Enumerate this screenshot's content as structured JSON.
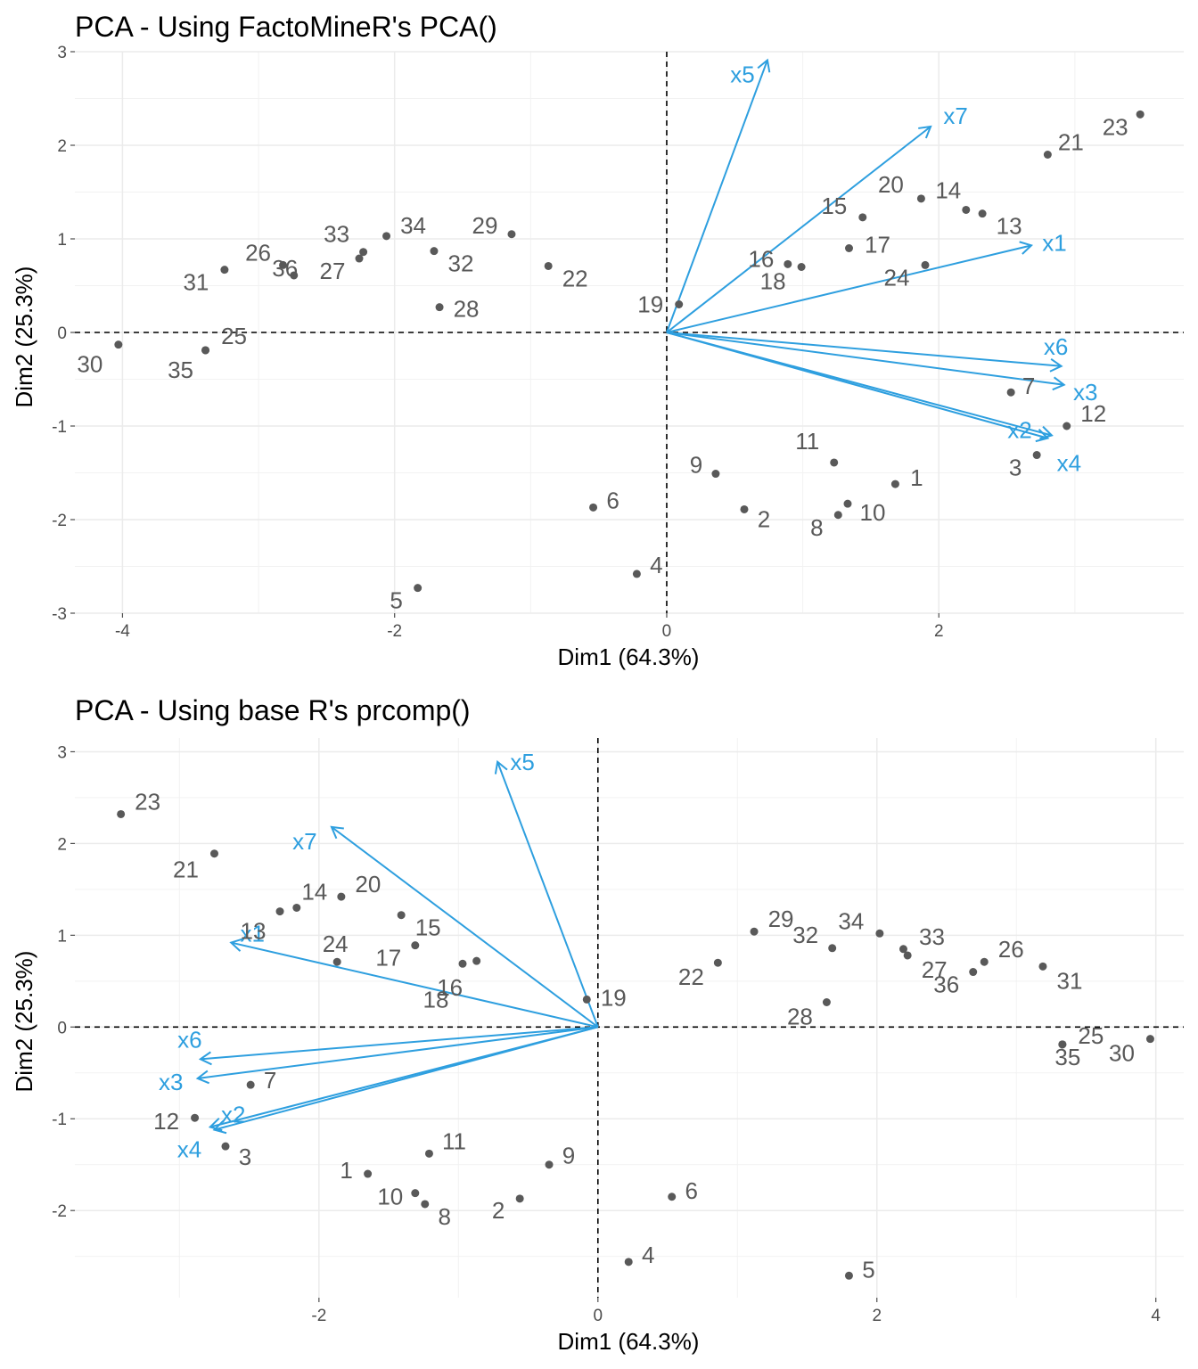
{
  "chart_data": [
    {
      "type": "scatter",
      "title": "PCA - Using FactoMineR's PCA()",
      "xlabel": "Dim1 (64.3%)",
      "ylabel": "Dim2 (25.3%)",
      "xlim": [
        -4.35,
        3.8
      ],
      "ylim": [
        -3.0,
        3.0
      ],
      "xticks": [
        -4,
        -2,
        0,
        2
      ],
      "yticks": [
        -3,
        -2,
        -1,
        0,
        1,
        2,
        3
      ],
      "xtick_labels": [
        "-4",
        "-2",
        "0",
        "2"
      ],
      "ytick_labels": [
        "-3",
        "-2",
        "-1",
        "0",
        "1",
        "2",
        "3"
      ],
      "grid": true,
      "reference_lines": {
        "x": 0,
        "y": 0,
        "style": "dashed"
      },
      "colors": {
        "points": "#595959",
        "variables": "#2e9fdf"
      },
      "individuals": [
        {
          "label": "1",
          "x": 1.68,
          "y": -1.62
        },
        {
          "label": "2",
          "x": 0.57,
          "y": -1.89
        },
        {
          "label": "3",
          "x": 2.72,
          "y": -1.31
        },
        {
          "label": "4",
          "x": -0.22,
          "y": -2.58
        },
        {
          "label": "5",
          "x": -1.83,
          "y": -2.73
        },
        {
          "label": "6",
          "x": -0.54,
          "y": -1.87
        },
        {
          "label": "7",
          "x": 2.53,
          "y": -0.64
        },
        {
          "label": "8",
          "x": 1.26,
          "y": -1.95
        },
        {
          "label": "9",
          "x": 0.36,
          "y": -1.51
        },
        {
          "label": "10",
          "x": 1.33,
          "y": -1.83
        },
        {
          "label": "11",
          "x": 1.23,
          "y": -1.39
        },
        {
          "label": "12",
          "x": 2.94,
          "y": -1.0
        },
        {
          "label": "13",
          "x": 2.32,
          "y": 1.27
        },
        {
          "label": "14",
          "x": 2.2,
          "y": 1.31
        },
        {
          "label": "15",
          "x": 1.44,
          "y": 1.23
        },
        {
          "label": "16",
          "x": 0.89,
          "y": 0.73
        },
        {
          "label": "17",
          "x": 1.34,
          "y": 0.9
        },
        {
          "label": "18",
          "x": 0.99,
          "y": 0.7
        },
        {
          "label": "19",
          "x": 0.09,
          "y": 0.3
        },
        {
          "label": "20",
          "x": 1.87,
          "y": 1.43
        },
        {
          "label": "21",
          "x": 2.8,
          "y": 1.9
        },
        {
          "label": "22",
          "x": -0.87,
          "y": 0.71
        },
        {
          "label": "23",
          "x": 3.48,
          "y": 2.33
        },
        {
          "label": "24",
          "x": 1.9,
          "y": 0.72
        },
        {
          "label": "25",
          "x": -3.39,
          "y": -0.19
        },
        {
          "label": "26",
          "x": -2.82,
          "y": 0.72
        },
        {
          "label": "27",
          "x": -2.26,
          "y": 0.79
        },
        {
          "label": "28",
          "x": -1.67,
          "y": 0.27
        },
        {
          "label": "29",
          "x": -1.14,
          "y": 1.05
        },
        {
          "label": "30",
          "x": -4.03,
          "y": -0.13
        },
        {
          "label": "31",
          "x": -3.25,
          "y": 0.67
        },
        {
          "label": "32",
          "x": -1.71,
          "y": 0.87
        },
        {
          "label": "33",
          "x": -2.23,
          "y": 0.86
        },
        {
          "label": "34",
          "x": -2.06,
          "y": 1.03
        },
        {
          "label": "35",
          "x": -3.39,
          "y": -0.19
        },
        {
          "label": "36",
          "x": -2.74,
          "y": 0.61
        }
      ],
      "variables": [
        {
          "label": "x1",
          "x": 2.68,
          "y": 0.93
        },
        {
          "label": "x2",
          "x": 2.83,
          "y": -1.1
        },
        {
          "label": "x3",
          "x": 2.92,
          "y": -0.56
        },
        {
          "label": "x4",
          "x": 2.8,
          "y": -1.13
        },
        {
          "label": "x5",
          "x": 0.74,
          "y": 2.91
        },
        {
          "label": "x6",
          "x": 2.9,
          "y": -0.36
        },
        {
          "label": "x7",
          "x": 1.94,
          "y": 2.2
        }
      ]
    },
    {
      "type": "scatter",
      "title": "PCA - Using base R's prcomp()",
      "xlabel": "Dim1 (64.3%)",
      "ylabel": "Dim2 (25.3%)",
      "xlim": [
        -3.75,
        4.2
      ],
      "ylim": [
        -2.95,
        3.15
      ],
      "xticks": [
        -2,
        0,
        2,
        4
      ],
      "yticks": [
        -2,
        -1,
        0,
        1,
        2,
        3
      ],
      "xtick_labels": [
        "-2",
        "0",
        "2",
        "4"
      ],
      "ytick_labels": [
        "-2",
        "-1",
        "0",
        "1",
        "2",
        "3"
      ],
      "grid": true,
      "reference_lines": {
        "x": 0,
        "y": 0,
        "style": "dashed"
      },
      "colors": {
        "points": "#595959",
        "variables": "#2e9fdf"
      },
      "individuals": [
        {
          "label": "1",
          "x": -1.65,
          "y": -1.6
        },
        {
          "label": "2",
          "x": -0.56,
          "y": -1.87
        },
        {
          "label": "3",
          "x": -2.67,
          "y": -1.3
        },
        {
          "label": "4",
          "x": 0.22,
          "y": -2.56
        },
        {
          "label": "5",
          "x": 1.8,
          "y": -2.71
        },
        {
          "label": "6",
          "x": 0.53,
          "y": -1.85
        },
        {
          "label": "7",
          "x": -2.49,
          "y": -0.63
        },
        {
          "label": "8",
          "x": -1.24,
          "y": -1.93
        },
        {
          "label": "9",
          "x": -0.35,
          "y": -1.5
        },
        {
          "label": "10",
          "x": -1.31,
          "y": -1.81
        },
        {
          "label": "11",
          "x": -1.21,
          "y": -1.38
        },
        {
          "label": "12",
          "x": -2.89,
          "y": -0.99
        },
        {
          "label": "13",
          "x": -2.28,
          "y": 1.26
        },
        {
          "label": "14",
          "x": -2.16,
          "y": 1.3
        },
        {
          "label": "15",
          "x": -1.41,
          "y": 1.22
        },
        {
          "label": "16",
          "x": -0.87,
          "y": 0.72
        },
        {
          "label": "17",
          "x": -1.31,
          "y": 0.89
        },
        {
          "label": "18",
          "x": -0.97,
          "y": 0.69
        },
        {
          "label": "19",
          "x": -0.08,
          "y": 0.3
        },
        {
          "label": "20",
          "x": -1.84,
          "y": 1.42
        },
        {
          "label": "21",
          "x": -2.75,
          "y": 1.89
        },
        {
          "label": "22",
          "x": 0.86,
          "y": 0.7
        },
        {
          "label": "23",
          "x": -3.42,
          "y": 2.32
        },
        {
          "label": "24",
          "x": -1.87,
          "y": 0.71
        },
        {
          "label": "25",
          "x": 3.33,
          "y": -0.19
        },
        {
          "label": "26",
          "x": 2.77,
          "y": 0.71
        },
        {
          "label": "27",
          "x": 2.22,
          "y": 0.78
        },
        {
          "label": "28",
          "x": 1.64,
          "y": 0.27
        },
        {
          "label": "29",
          "x": 1.12,
          "y": 1.04
        },
        {
          "label": "30",
          "x": 3.96,
          "y": -0.13
        },
        {
          "label": "31",
          "x": 3.19,
          "y": 0.66
        },
        {
          "label": "32",
          "x": 1.68,
          "y": 0.86
        },
        {
          "label": "33",
          "x": 2.19,
          "y": 0.85
        },
        {
          "label": "34",
          "x": 2.02,
          "y": 1.02
        },
        {
          "label": "35",
          "x": 3.33,
          "y": -0.19
        },
        {
          "label": "36",
          "x": 2.69,
          "y": 0.6
        }
      ],
      "variables": [
        {
          "label": "x1",
          "x": -2.63,
          "y": 0.92
        },
        {
          "label": "x2",
          "x": -2.78,
          "y": -1.09
        },
        {
          "label": "x3",
          "x": -2.87,
          "y": -0.56
        },
        {
          "label": "x4",
          "x": -2.75,
          "y": -1.12
        },
        {
          "label": "x5",
          "x": -0.72,
          "y": 2.89
        },
        {
          "label": "x6",
          "x": -2.85,
          "y": -0.35
        },
        {
          "label": "x7",
          "x": -1.91,
          "y": 2.18
        }
      ]
    }
  ]
}
